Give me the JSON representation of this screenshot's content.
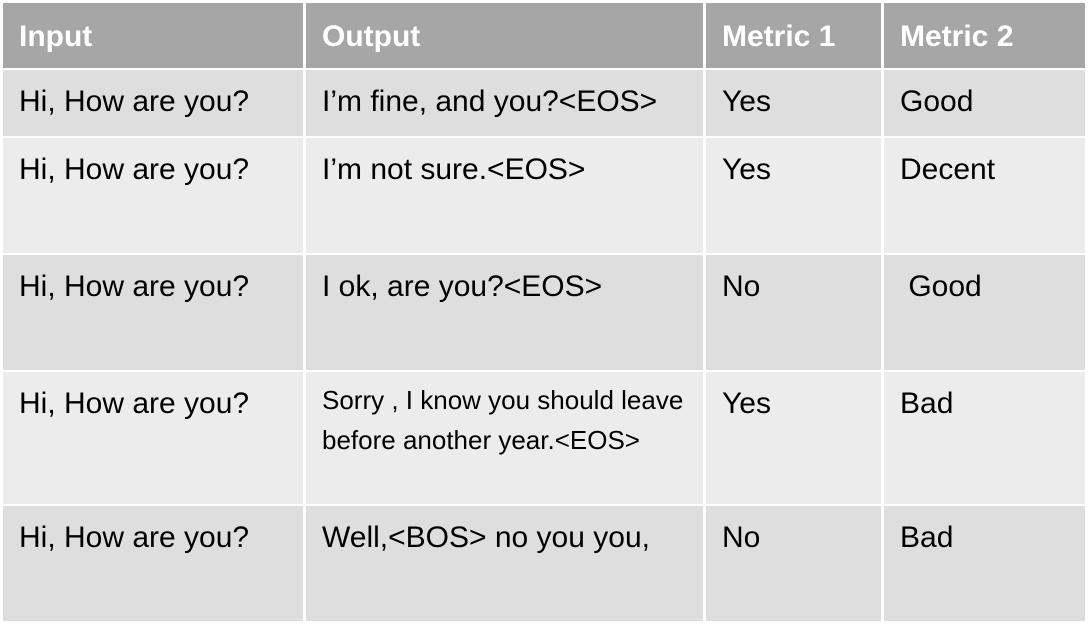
{
  "table": {
    "header": [
      "Input",
      "Output",
      "Metric 1",
      "Metric 2"
    ],
    "rows": [
      [
        "Hi, How are you?",
        "I’m fine, and you?<EOS>",
        "Yes",
        "Good"
      ],
      [
        "Hi, How are you?",
        "I’m not sure.<EOS>",
        "Yes",
        "Decent"
      ],
      [
        "Hi, How are you?",
        "I ok, are you?<EOS>",
        "No",
        " Good"
      ],
      [
        "Hi, How are you?",
        "Sorry , I know you should leave before another year.<EOS>",
        "Yes",
        "Bad"
      ],
      [
        "Hi, How are you?",
        "Well,<BOS> no you you,",
        "No",
        "Bad"
      ]
    ]
  }
}
